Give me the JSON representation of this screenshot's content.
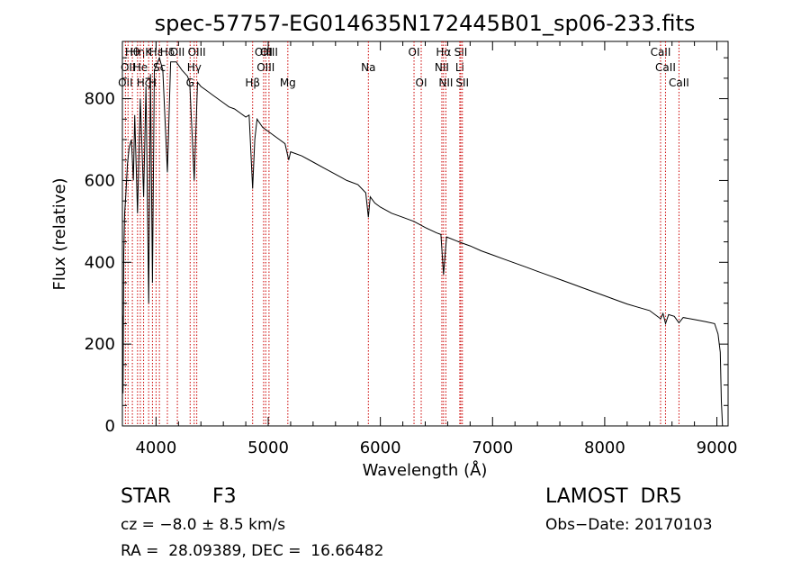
{
  "chart_data": {
    "type": "line",
    "title": "spec-57757-EG014635N172445B01_sp06-233.fits",
    "xlabel": "Wavelength (Å)",
    "ylabel": "Flux (relative)",
    "xlim": [
      3700,
      9100
    ],
    "ylim": [
      0,
      940
    ],
    "xticks": [
      4000,
      5000,
      6000,
      7000,
      8000,
      9000
    ],
    "yticks": [
      0,
      200,
      400,
      600,
      800
    ],
    "grid": false,
    "line_color": "#000000",
    "marker_color": "#cc0000",
    "continuum": [
      [
        3700,
        0
      ],
      [
        3702,
        270
      ],
      [
        3706,
        80
      ],
      [
        3712,
        420
      ],
      [
        3720,
        520
      ],
      [
        3730,
        560
      ],
      [
        3745,
        640
      ],
      [
        3760,
        680
      ],
      [
        3780,
        700
      ],
      [
        3798,
        600
      ],
      [
        3810,
        760
      ],
      [
        3835,
        520
      ],
      [
        3860,
        800
      ],
      [
        3889,
        560
      ],
      [
        3910,
        830
      ],
      [
        3934,
        300
      ],
      [
        3950,
        860
      ],
      [
        3968,
        350
      ],
      [
        3985,
        870
      ],
      [
        4000,
        880
      ],
      [
        4030,
        900
      ],
      [
        4060,
        870
      ],
      [
        4101,
        620
      ],
      [
        4130,
        890
      ],
      [
        4180,
        890
      ],
      [
        4230,
        870
      ],
      [
        4280,
        855
      ],
      [
        4300,
        840
      ],
      [
        4340,
        600
      ],
      [
        4370,
        840
      ],
      [
        4400,
        830
      ],
      [
        4450,
        820
      ],
      [
        4500,
        810
      ],
      [
        4550,
        800
      ],
      [
        4600,
        790
      ],
      [
        4650,
        780
      ],
      [
        4700,
        775
      ],
      [
        4750,
        765
      ],
      [
        4800,
        755
      ],
      [
        4830,
        760
      ],
      [
        4861,
        580
      ],
      [
        4880,
        700
      ],
      [
        4900,
        750
      ],
      [
        4950,
        730
      ],
      [
        5000,
        720
      ],
      [
        5050,
        710
      ],
      [
        5100,
        700
      ],
      [
        5150,
        690
      ],
      [
        5183,
        650
      ],
      [
        5200,
        670
      ],
      [
        5300,
        660
      ],
      [
        5400,
        645
      ],
      [
        5500,
        630
      ],
      [
        5600,
        615
      ],
      [
        5700,
        600
      ],
      [
        5800,
        590
      ],
      [
        5870,
        570
      ],
      [
        5893,
        510
      ],
      [
        5910,
        560
      ],
      [
        5950,
        545
      ],
      [
        6000,
        535
      ],
      [
        6100,
        520
      ],
      [
        6200,
        510
      ],
      [
        6300,
        500
      ],
      [
        6400,
        485
      ],
      [
        6500,
        472
      ],
      [
        6540,
        468
      ],
      [
        6563,
        370
      ],
      [
        6590,
        462
      ],
      [
        6700,
        450
      ],
      [
        6800,
        440
      ],
      [
        6900,
        428
      ],
      [
        7000,
        418
      ],
      [
        7100,
        408
      ],
      [
        7200,
        398
      ],
      [
        7300,
        388
      ],
      [
        7400,
        378
      ],
      [
        7500,
        368
      ],
      [
        7600,
        358
      ],
      [
        7700,
        348
      ],
      [
        7800,
        338
      ],
      [
        7900,
        328
      ],
      [
        8000,
        318
      ],
      [
        8100,
        308
      ],
      [
        8200,
        298
      ],
      [
        8300,
        290
      ],
      [
        8400,
        282
      ],
      [
        8498,
        262
      ],
      [
        8520,
        275
      ],
      [
        8542,
        250
      ],
      [
        8570,
        272
      ],
      [
        8620,
        268
      ],
      [
        8662,
        252
      ],
      [
        8700,
        265
      ],
      [
        8800,
        260
      ],
      [
        8900,
        255
      ],
      [
        8980,
        250
      ],
      [
        9010,
        225
      ],
      [
        9030,
        180
      ],
      [
        9040,
        60
      ],
      [
        9050,
        0
      ]
    ],
    "line_markers": [
      {
        "x": 3727,
        "label": "OII",
        "row": 3
      },
      {
        "x": 3750,
        "label": "OII",
        "row": 2
      },
      {
        "x": 3789,
        "label": "Hθ",
        "row": 1
      },
      {
        "x": 3835,
        "label": "Hη",
        "row": 1
      },
      {
        "x": 3860,
        "label": "He",
        "row": 2
      },
      {
        "x": 3889,
        "label": "Hζ",
        "row": 3
      },
      {
        "x": 3934,
        "label": "K",
        "row": 1
      },
      {
        "x": 3968,
        "label": "H",
        "row": 3
      },
      {
        "x": 4000,
        "label": "Hε",
        "row": 1
      },
      {
        "x": 4030,
        "label": "Sc",
        "row": 2
      },
      {
        "x": 4101,
        "label": "Hδ",
        "row": 1
      },
      {
        "x": 4190,
        "label": "OII",
        "row": 1
      },
      {
        "x": 4304,
        "label": "G",
        "row": 3
      },
      {
        "x": 4340,
        "label": "Hγ",
        "row": 2
      },
      {
        "x": 4363,
        "label": "OIII",
        "row": 1
      },
      {
        "x": 4861,
        "label": "Hβ",
        "row": 3
      },
      {
        "x": 4959,
        "label": "OIII",
        "row": 1
      },
      {
        "x": 4978,
        "label": "OIII",
        "row": 2
      },
      {
        "x": 5007,
        "label": "OIII",
        "row": 1
      },
      {
        "x": 5175,
        "label": "Mg",
        "row": 3
      },
      {
        "x": 5893,
        "label": "Na",
        "row": 2
      },
      {
        "x": 6300,
        "label": "OI",
        "row": 1
      },
      {
        "x": 6364,
        "label": "OI",
        "row": 3
      },
      {
        "x": 6548,
        "label": "NII",
        "row": 2
      },
      {
        "x": 6563,
        "label": "Hα",
        "row": 1
      },
      {
        "x": 6584,
        "label": "NII",
        "row": 3
      },
      {
        "x": 6708,
        "label": "Li",
        "row": 2
      },
      {
        "x": 6717,
        "label": "SII",
        "row": 1
      },
      {
        "x": 6731,
        "label": "SII",
        "row": 3
      },
      {
        "x": 8498,
        "label": "CaII",
        "row": 1
      },
      {
        "x": 8542,
        "label": "CaII",
        "row": 2
      },
      {
        "x": 8662,
        "label": "CaII",
        "row": 3
      }
    ]
  },
  "info": {
    "object_type": "STAR",
    "subclass": "F3",
    "survey": "LAMOST  DR5",
    "cz": "cz = −8.0 ± 8.5 km/s",
    "obs_date": "Obs−Date: 20170103",
    "coords": "RA =  28.09389, DEC =  16.66482"
  }
}
